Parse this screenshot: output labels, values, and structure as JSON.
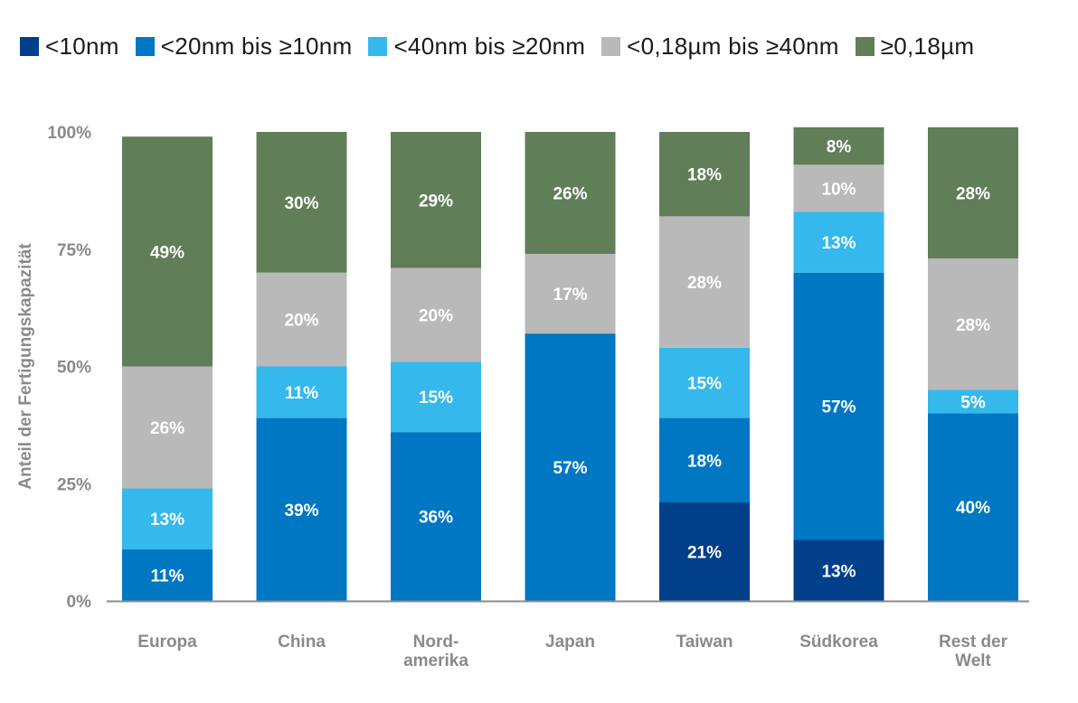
{
  "chart_data": {
    "type": "bar",
    "stacked": true,
    "ylabel": "Anteil der Fertigungskapazität",
    "yticks": [
      "0%",
      "25%",
      "50%",
      "75%",
      "100%"
    ],
    "ylim": [
      0,
      100
    ],
    "categories": [
      [
        "Europa"
      ],
      [
        "China"
      ],
      [
        "Nord-",
        "amerika"
      ],
      [
        "Japan"
      ],
      [
        "Taiwan"
      ],
      [
        "Südkorea"
      ],
      [
        "Rest der",
        "Welt"
      ]
    ],
    "series": [
      {
        "name": "<10nm",
        "color": "#003f8a",
        "values": [
          0,
          0,
          0,
          0,
          21,
          13,
          0
        ]
      },
      {
        "name": "<20nm bis ≥10nm",
        "color": "#0077c2",
        "values": [
          11,
          39,
          36,
          57,
          18,
          57,
          40
        ]
      },
      {
        "name": "<40nm bis ≥20nm",
        "color": "#35b8ec",
        "values": [
          13,
          11,
          15,
          0,
          15,
          13,
          5
        ]
      },
      {
        "name": "<0,18µm bis ≥40nm",
        "color": "#b9b9b9",
        "values": [
          26,
          20,
          20,
          17,
          28,
          10,
          28
        ]
      },
      {
        "name": "≥0,18µm",
        "color": "#607e58",
        "values": [
          49,
          30,
          29,
          26,
          18,
          8,
          28
        ]
      }
    ],
    "legend": "top-left",
    "grid": false
  }
}
